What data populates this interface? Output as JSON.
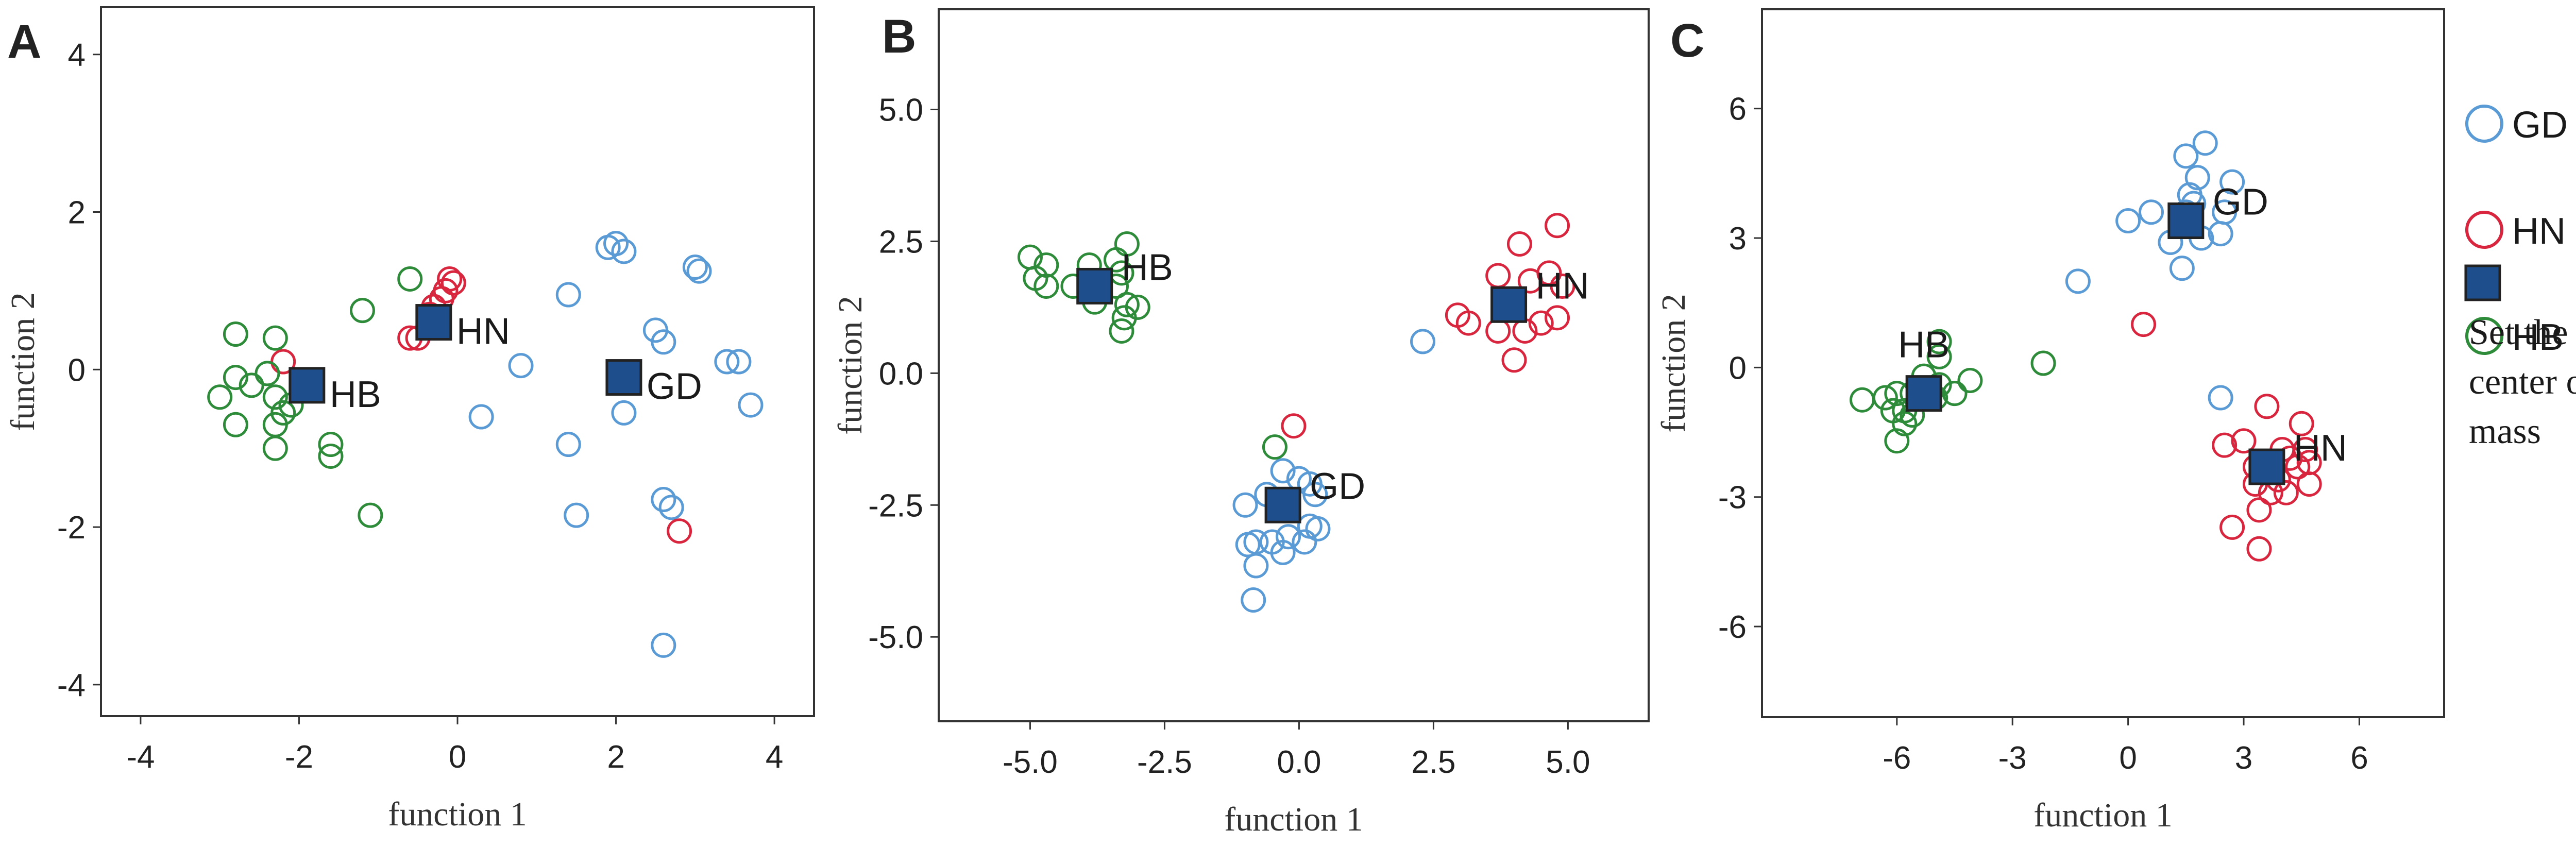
{
  "colors": {
    "GD": "#5b9bd5",
    "HN": "#d9263f",
    "HB": "#2e8b3a",
    "centroid_fill": "#1f4e8c",
    "centroid_stroke": "#222222"
  },
  "legend": {
    "items": [
      {
        "name": "GD",
        "color": "#5b9bd5"
      },
      {
        "name": "HN",
        "color": "#d9263f"
      },
      {
        "name": "HB",
        "color": "#2e8b3a"
      }
    ],
    "centroid_note": [
      "Set the",
      "center of",
      "mass"
    ]
  },
  "chart_data": [
    {
      "type": "scatter",
      "panel": "A",
      "xlabel": "function 1",
      "ylabel": "function 2",
      "xlim": [
        -4.5,
        4.5
      ],
      "ylim": [
        -4.4,
        4.6
      ],
      "xticks": [
        -4,
        -2,
        0,
        2,
        4
      ],
      "xtick_labels": [
        "-4",
        "-2",
        "0",
        "2",
        "4"
      ],
      "yticks": [
        -4,
        -2,
        0,
        2,
        4
      ],
      "ytick_labels": [
        "-4",
        "-2",
        "0",
        "2",
        "4"
      ],
      "series": [
        {
          "name": "GD",
          "points": [
            [
              2.0,
              1.6
            ],
            [
              2.1,
              1.5
            ],
            [
              1.9,
              1.55
            ],
            [
              3.0,
              1.3
            ],
            [
              3.05,
              1.25
            ],
            [
              1.4,
              0.95
            ],
            [
              0.8,
              0.05
            ],
            [
              2.5,
              0.5
            ],
            [
              2.6,
              0.35
            ],
            [
              3.4,
              0.1
            ],
            [
              3.55,
              0.1
            ],
            [
              3.7,
              -0.45
            ],
            [
              0.3,
              -0.6
            ],
            [
              2.1,
              -0.55
            ],
            [
              1.4,
              -0.95
            ],
            [
              1.5,
              -1.85
            ],
            [
              2.6,
              -1.65
            ],
            [
              2.7,
              -1.75
            ],
            [
              2.6,
              -3.5
            ]
          ]
        },
        {
          "name": "HN",
          "points": [
            [
              -0.6,
              0.4
            ],
            [
              -0.5,
              0.4
            ],
            [
              -0.3,
              0.8
            ],
            [
              -0.2,
              0.9
            ],
            [
              -0.15,
              1.0
            ],
            [
              -0.05,
              1.1
            ],
            [
              -0.1,
              1.15
            ],
            [
              -0.35,
              0.7
            ],
            [
              -2.2,
              0.1
            ],
            [
              2.8,
              -2.05
            ]
          ]
        },
        {
          "name": "HB",
          "points": [
            [
              -2.8,
              0.45
            ],
            [
              -2.3,
              0.4
            ],
            [
              -1.2,
              0.75
            ],
            [
              -0.6,
              1.15
            ],
            [
              -3.0,
              -0.35
            ],
            [
              -2.8,
              -0.1
            ],
            [
              -2.6,
              -0.2
            ],
            [
              -2.4,
              -0.05
            ],
            [
              -2.3,
              -0.35
            ],
            [
              -2.1,
              -0.45
            ],
            [
              -2.2,
              -0.55
            ],
            [
              -2.3,
              -0.7
            ],
            [
              -2.8,
              -0.7
            ],
            [
              -2.3,
              -1.0
            ],
            [
              -1.6,
              -0.95
            ],
            [
              -1.6,
              -1.1
            ],
            [
              -1.1,
              -1.85
            ]
          ]
        }
      ],
      "centroids": [
        {
          "name": "HB",
          "x": -1.9,
          "y": -0.2,
          "label": "HB",
          "label_pos": "right"
        },
        {
          "name": "HN",
          "x": -0.3,
          "y": 0.6,
          "label": "HN",
          "label_pos": "right"
        },
        {
          "name": "GD",
          "x": 2.1,
          "y": -0.1,
          "label": "GD",
          "label_pos": "right"
        }
      ]
    },
    {
      "type": "scatter",
      "panel": "B",
      "xlabel": "function 1",
      "ylabel": "function 2",
      "xlim": [
        -6.7,
        6.5
      ],
      "ylim": [
        -6.6,
        6.9
      ],
      "xticks": [
        -5,
        -2.5,
        0,
        2.5,
        5
      ],
      "xtick_labels": [
        "-5.0",
        "-2.5",
        "0.0",
        "2.5",
        "5.0"
      ],
      "yticks": [
        -5,
        -2.5,
        0,
        2.5,
        5
      ],
      "ytick_labels": [
        "-5.0",
        "-2.5",
        "0.0",
        "2.5",
        "5.0"
      ],
      "series": [
        {
          "name": "GD",
          "points": [
            [
              2.3,
              0.6
            ],
            [
              -0.3,
              -1.85
            ],
            [
              0.0,
              -2.0
            ],
            [
              0.2,
              -2.1
            ],
            [
              -0.6,
              -2.3
            ],
            [
              0.3,
              -2.3
            ],
            [
              -1.0,
              -2.5
            ],
            [
              0.2,
              -2.9
            ],
            [
              0.35,
              -2.95
            ],
            [
              -0.2,
              -3.1
            ],
            [
              -0.5,
              -3.2
            ],
            [
              -0.8,
              -3.2
            ],
            [
              -0.95,
              -3.25
            ],
            [
              0.1,
              -3.2
            ],
            [
              -0.3,
              -3.4
            ],
            [
              -0.8,
              -3.65
            ],
            [
              -0.85,
              -4.3
            ]
          ]
        },
        {
          "name": "HN",
          "points": [
            [
              4.1,
              2.45
            ],
            [
              4.8,
              2.8
            ],
            [
              3.7,
              1.85
            ],
            [
              4.3,
              1.75
            ],
            [
              4.65,
              1.9
            ],
            [
              4.9,
              1.65
            ],
            [
              2.95,
              1.1
            ],
            [
              3.15,
              0.95
            ],
            [
              3.7,
              0.8
            ],
            [
              4.2,
              0.8
            ],
            [
              4.5,
              0.95
            ],
            [
              4.8,
              1.05
            ],
            [
              4.0,
              0.25
            ],
            [
              -0.1,
              -1.0
            ]
          ]
        },
        {
          "name": "HB",
          "points": [
            [
              -5.0,
              2.2
            ],
            [
              -4.7,
              2.05
            ],
            [
              -3.2,
              2.45
            ],
            [
              -3.4,
              2.15
            ],
            [
              -3.9,
              2.05
            ],
            [
              -4.9,
              1.8
            ],
            [
              -4.7,
              1.65
            ],
            [
              -4.2,
              1.65
            ],
            [
              -3.3,
              1.9
            ],
            [
              -3.4,
              1.65
            ],
            [
              -3.8,
              1.35
            ],
            [
              -3.2,
              1.3
            ],
            [
              -3.0,
              1.25
            ],
            [
              -3.25,
              1.05
            ],
            [
              -3.3,
              0.8
            ],
            [
              -0.45,
              -1.4
            ]
          ]
        }
      ],
      "centroids": [
        {
          "name": "HB",
          "x": -3.8,
          "y": 1.65,
          "label": "HB",
          "label_pos": "right-up"
        },
        {
          "name": "HN",
          "x": 3.9,
          "y": 1.3,
          "label": "HN",
          "label_pos": "right-up"
        },
        {
          "name": "GD",
          "x": -0.3,
          "y": -2.5,
          "label": "GD",
          "label_pos": "right-up"
        }
      ]
    },
    {
      "type": "scatter",
      "panel": "C",
      "xlabel": "function 1",
      "ylabel": "function 2",
      "xlim": [
        -9.5,
        8.2
      ],
      "ylim": [
        -8.1,
        8.3
      ],
      "xticks": [
        -6,
        -3,
        0,
        3,
        6
      ],
      "xtick_labels": [
        "-6",
        "-3",
        "0",
        "3",
        "6"
      ],
      "yticks": [
        -6,
        -3,
        0,
        3,
        6
      ],
      "ytick_labels": [
        "-6",
        "-3",
        "0",
        "3",
        "6"
      ],
      "series": [
        {
          "name": "GD",
          "points": [
            [
              2.0,
              5.2
            ],
            [
              1.5,
              4.9
            ],
            [
              1.8,
              4.4
            ],
            [
              1.6,
              4.0
            ],
            [
              1.7,
              3.8
            ],
            [
              2.7,
              4.3
            ],
            [
              1.5,
              3.6
            ],
            [
              0.6,
              3.6
            ],
            [
              0.0,
              3.4
            ],
            [
              2.5,
              3.6
            ],
            [
              2.4,
              3.1
            ],
            [
              1.9,
              3.0
            ],
            [
              1.1,
              2.9
            ],
            [
              1.4,
              2.3
            ],
            [
              -1.3,
              2.0
            ],
            [
              2.4,
              -0.7
            ]
          ]
        },
        {
          "name": "HN",
          "points": [
            [
              3.6,
              -0.9
            ],
            [
              4.5,
              -1.3
            ],
            [
              2.5,
              -1.8
            ],
            [
              3.0,
              -1.7
            ],
            [
              4.0,
              -1.9
            ],
            [
              4.6,
              -1.9
            ],
            [
              3.3,
              -2.3
            ],
            [
              4.2,
              -2.1
            ],
            [
              4.4,
              -2.3
            ],
            [
              4.7,
              -2.2
            ],
            [
              3.3,
              -2.7
            ],
            [
              3.9,
              -2.6
            ],
            [
              4.7,
              -2.7
            ],
            [
              3.7,
              -2.9
            ],
            [
              4.1,
              -2.9
            ],
            [
              3.4,
              -3.3
            ],
            [
              2.7,
              -3.7
            ],
            [
              3.4,
              -4.2
            ],
            [
              0.4,
              1.0
            ]
          ]
        },
        {
          "name": "HB",
          "points": [
            [
              -4.9,
              0.6
            ],
            [
              -4.9,
              0.25
            ],
            [
              -5.3,
              -0.2
            ],
            [
              -4.9,
              -0.4
            ],
            [
              -5.6,
              -0.6
            ],
            [
              -5.0,
              -0.7
            ],
            [
              -6.0,
              -0.6
            ],
            [
              -6.3,
              -0.7
            ],
            [
              -6.9,
              -0.75
            ],
            [
              -5.8,
              -1.0
            ],
            [
              -6.1,
              -1.0
            ],
            [
              -5.6,
              -1.1
            ],
            [
              -5.8,
              -1.3
            ],
            [
              -6.0,
              -1.7
            ],
            [
              -4.5,
              -0.6
            ],
            [
              -4.1,
              -0.3
            ],
            [
              -2.2,
              0.1
            ]
          ]
        }
      ],
      "centroids": [
        {
          "name": "GD",
          "x": 1.5,
          "y": 3.4,
          "label": "GD",
          "label_pos": "right-up"
        },
        {
          "name": "HB",
          "x": -5.3,
          "y": -0.6,
          "label": "HB",
          "label_pos": "above"
        },
        {
          "name": "HN",
          "x": 3.6,
          "y": -2.3,
          "label": "HN",
          "label_pos": "right-up"
        }
      ]
    }
  ]
}
